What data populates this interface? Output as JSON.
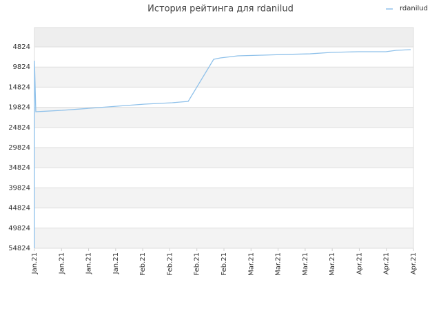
{
  "chart_data": {
    "type": "line",
    "title": "История рейтинга для rdanilud",
    "invert_y": true,
    "x": [
      0,
      0,
      0.05,
      1.02,
      2.04,
      3.05,
      4.07,
      5.09,
      5.68,
      6.62,
      6.87,
      7.51,
      8.4,
      9.16,
      10.18,
      10.95,
      11.96,
      12.98,
      13.36,
      13.9
    ],
    "series": [
      {
        "name": "rdanilud",
        "color": "#8fc1ea",
        "values": [
          54824,
          8250,
          20920,
          20580,
          20060,
          19550,
          19030,
          18690,
          18350,
          7900,
          7560,
          7050,
          6880,
          6710,
          6540,
          6190,
          6020,
          6020,
          5680,
          5510
        ]
      }
    ],
    "xlim": [
      0,
      14
    ],
    "xticks": [
      {
        "value": 0,
        "label": "Jan.21"
      },
      {
        "value": 1,
        "label": "Jan.21"
      },
      {
        "value": 2,
        "label": "Jan.21"
      },
      {
        "value": 3,
        "label": "Jan.21"
      },
      {
        "value": 4,
        "label": "Feb.21"
      },
      {
        "value": 5,
        "label": "Feb.21"
      },
      {
        "value": 6,
        "label": "Feb.21"
      },
      {
        "value": 7,
        "label": "Feb.21"
      },
      {
        "value": 8,
        "label": "Mar.21"
      },
      {
        "value": 9,
        "label": "Mar.21"
      },
      {
        "value": 10,
        "label": "Mar.21"
      },
      {
        "value": 11,
        "label": "Mar.21"
      },
      {
        "value": 12,
        "label": "Apr.21"
      },
      {
        "value": 13,
        "label": "Apr.21"
      },
      {
        "value": 14,
        "label": "Apr.21"
      }
    ],
    "ylim": [
      54824,
      24
    ],
    "yticks": [
      4824,
      9824,
      14824,
      19824,
      24824,
      29824,
      34824,
      39824,
      44824,
      49824,
      54824
    ],
    "grid": true,
    "legend": "top-right"
  }
}
